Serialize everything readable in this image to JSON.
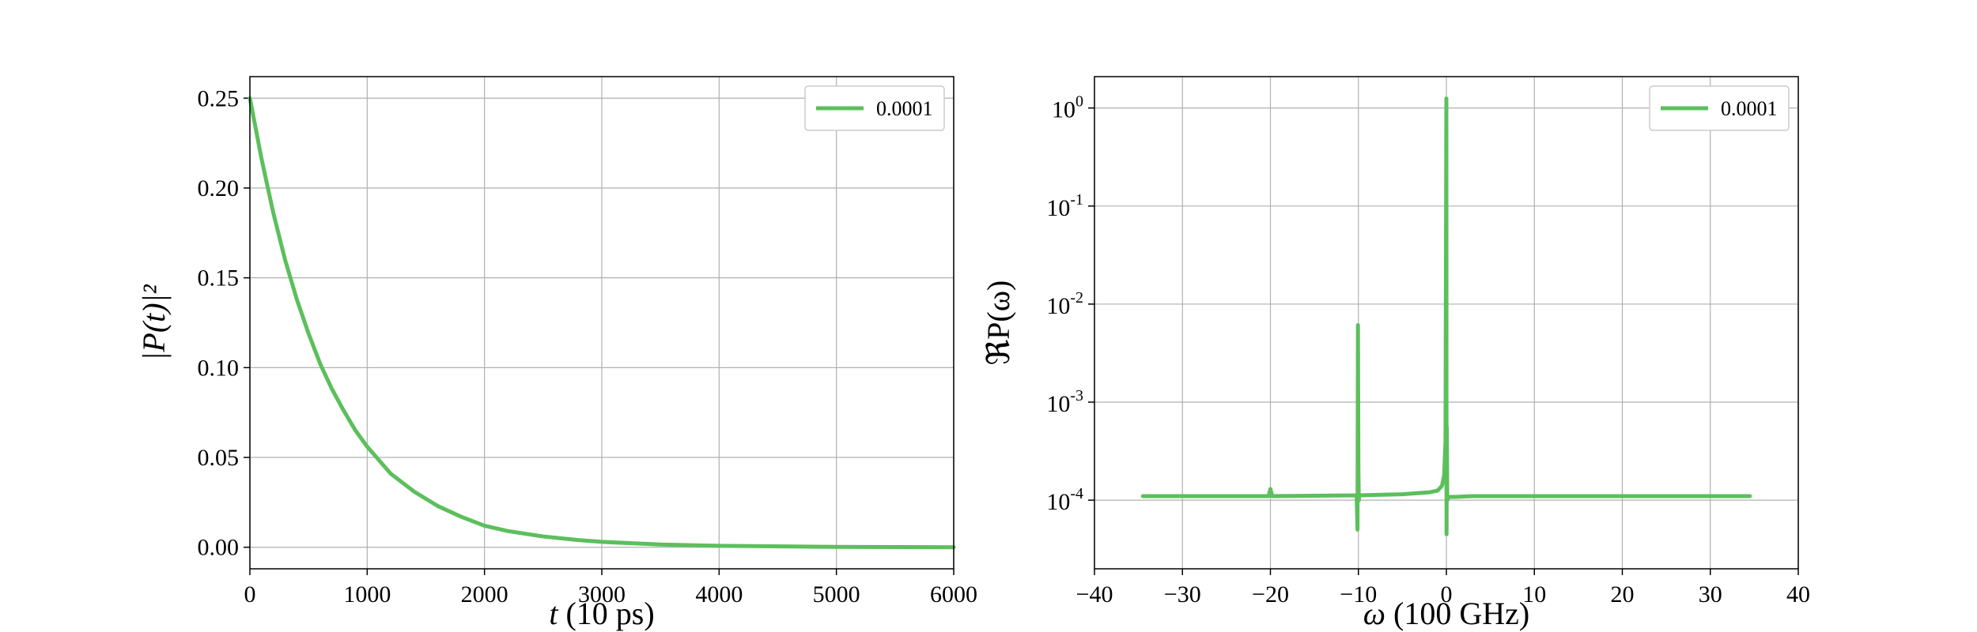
{
  "chart_data": [
    {
      "type": "line",
      "xlabel_var": "t",
      "xlabel_unit": " (10 ps)",
      "ylabel": "|P(t)|²",
      "xlim": [
        0,
        6000
      ],
      "ylim": [
        -0.012,
        0.262
      ],
      "x_ticks": [
        0,
        1000,
        2000,
        3000,
        4000,
        5000,
        6000
      ],
      "y_ticks": [
        "0.00",
        "0.05",
        "0.10",
        "0.15",
        "0.20",
        "0.25"
      ],
      "grid": true,
      "legend_position": "top-right",
      "series": [
        {
          "name": "0.0001",
          "color": "#5cbf5c",
          "x": [
            0,
            100,
            200,
            300,
            400,
            500,
            600,
            700,
            800,
            900,
            1000,
            1200,
            1400,
            1600,
            1800,
            2000,
            2200,
            2500,
            2800,
            3000,
            3500,
            4000,
            5000,
            6000
          ],
          "y": [
            0.25,
            0.216,
            0.186,
            0.16,
            0.138,
            0.119,
            0.102,
            0.088,
            0.076,
            0.065,
            0.056,
            0.041,
            0.031,
            0.023,
            0.017,
            0.012,
            0.009,
            0.006,
            0.004,
            0.003,
            0.0015,
            0.0008,
            0.0002,
            0.0
          ]
        }
      ]
    },
    {
      "type": "line",
      "xlabel_var": "ω",
      "xlabel_unit": " (100 GHz)",
      "ylabel": "ℜP(ω)",
      "xlim": [
        -40,
        40
      ],
      "ylog": true,
      "ylim_log10": [
        -4.7,
        0.32
      ],
      "x_ticks": [
        "−40",
        "−30",
        "−20",
        "−10",
        "0",
        "10",
        "20",
        "30",
        "40"
      ],
      "x_tick_values": [
        -40,
        -30,
        -20,
        -10,
        0,
        10,
        20,
        30,
        40
      ],
      "y_ticks_exp": [
        "0",
        "-1",
        "-2",
        "-3",
        "-4"
      ],
      "y_tick_base": "10",
      "grid": true,
      "legend_position": "top-right",
      "series": [
        {
          "name": "0.0001",
          "color": "#5cbf5c",
          "x": [
            -34.5,
            -20.2,
            -20.0,
            -19.8,
            -10.2,
            -10.1,
            -10.05,
            -10.0,
            -9.95,
            -9.9,
            -5.0,
            -2.0,
            -1.0,
            -0.5,
            -0.25,
            -0.1,
            0.0,
            0.02,
            0.05,
            0.1,
            0.2,
            0.4,
            1.0,
            3.0,
            10.0,
            20.0,
            34.5
          ],
          "y": [
            0.00011,
            0.00011,
            0.00013,
            0.00011,
            0.000112,
            5e-05,
            0.0061,
            0.0002,
            0.0001,
            0.000112,
            0.000115,
            0.00012,
            0.000125,
            0.00014,
            0.00018,
            0.0004,
            1.25,
            4.5e-05,
            0.00055,
            0.0001,
            0.000105,
            0.000108,
            0.000108,
            0.00011,
            0.00011,
            0.00011,
            0.00011
          ]
        }
      ]
    }
  ]
}
